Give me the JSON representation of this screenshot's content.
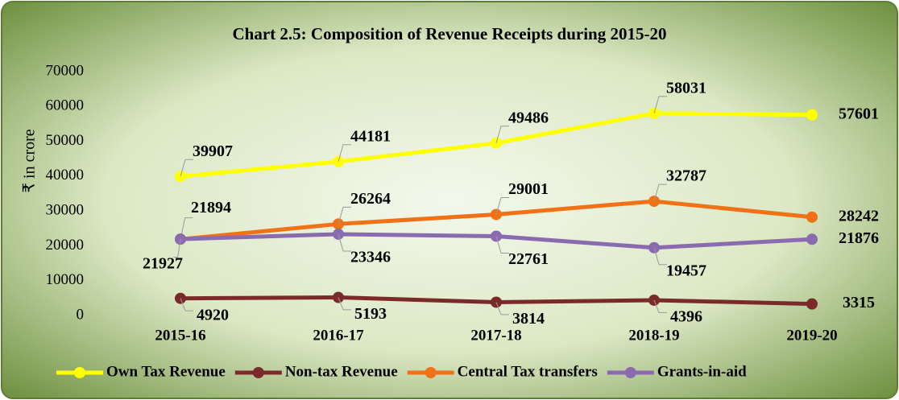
{
  "chart_data": {
    "type": "line",
    "title": "Chart 2.5: Composition of Revenue Receipts during 2015-20",
    "y_label": "₹ in crore",
    "categories": [
      "2015-16",
      "2016-17",
      "2017-18",
      "2018-19",
      "2019-20"
    ],
    "series": [
      {
        "name": "Own Tax Revenue",
        "color": "#ffff00",
        "values": [
          39907,
          44181,
          49486,
          58031,
          57601
        ]
      },
      {
        "name": "Non-tax Revenue",
        "color": "#7b2a2a",
        "values": [
          4920,
          5193,
          3814,
          4396,
          3315
        ]
      },
      {
        "name": "Central Tax transfers",
        "color": "#f07116",
        "values": [
          21894,
          26264,
          29001,
          32787,
          28242
        ]
      },
      {
        "name": "Grants-in-aid",
        "color": "#8a6bb0",
        "values": [
          21927,
          23346,
          22761,
          19457,
          21876
        ]
      }
    ],
    "ylim": [
      0,
      70000
    ],
    "yticks": [
      0,
      10000,
      20000,
      30000,
      40000,
      50000,
      60000,
      70000
    ],
    "grid": false,
    "legend": "bottom"
  }
}
